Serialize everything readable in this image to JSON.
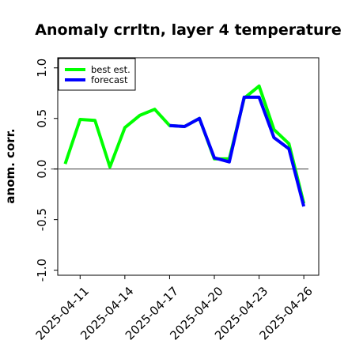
{
  "chart_data": {
    "type": "line",
    "title": "Anomaly crrltn, layer 4 temperature",
    "xlabel": "",
    "ylabel": "anom. corr.",
    "ylim": [
      -1.05,
      1.1
    ],
    "yticks": [
      1.0,
      0.5,
      0.0,
      -0.5,
      -1.0
    ],
    "ytick_labels": [
      "1.0",
      "0.5",
      "0.0",
      "-0.5",
      "-1.0"
    ],
    "xlim": [
      "2025-04-09T12",
      "2025-04-27"
    ],
    "xticks": [
      "2025-04-11",
      "2025-04-14",
      "2025-04-17",
      "2025-04-20",
      "2025-04-23",
      "2025-04-26"
    ],
    "xtick_labels": [
      "2025-04-11",
      "2025-04-14",
      "2025-04-17",
      "2025-04-20",
      "2025-04-23",
      "2025-04-26"
    ],
    "xtick_highlight": "2025-04-17",
    "xtick_highlight_color": "#228b22",
    "reference_line": 0.0,
    "grid": false,
    "legend_position": "top-left",
    "series": [
      {
        "name": "best est.",
        "color": "#00ff00",
        "x": [
          "2025-04-10",
          "2025-04-11",
          "2025-04-12",
          "2025-04-13",
          "2025-04-14",
          "2025-04-15",
          "2025-04-16",
          "2025-04-17",
          "2025-04-18",
          "2025-04-19",
          "2025-04-20",
          "2025-04-21",
          "2025-04-22",
          "2025-04-23",
          "2025-04-24",
          "2025-04-25",
          "2025-04-26"
        ],
        "values": [
          0.05,
          0.49,
          0.48,
          0.02,
          0.41,
          0.53,
          0.59,
          0.43,
          0.42,
          0.5,
          0.1,
          0.1,
          0.7,
          0.82,
          0.39,
          0.25,
          -0.34
        ]
      },
      {
        "name": "forecast",
        "color": "#0000ff",
        "x": [
          "2025-04-17",
          "2025-04-18",
          "2025-04-19",
          "2025-04-20",
          "2025-04-21",
          "2025-04-22",
          "2025-04-23",
          "2025-04-24",
          "2025-04-25",
          "2025-04-26"
        ],
        "values": [
          0.43,
          0.42,
          0.5,
          0.11,
          0.07,
          0.71,
          0.71,
          0.31,
          0.2,
          -0.37
        ]
      }
    ]
  }
}
